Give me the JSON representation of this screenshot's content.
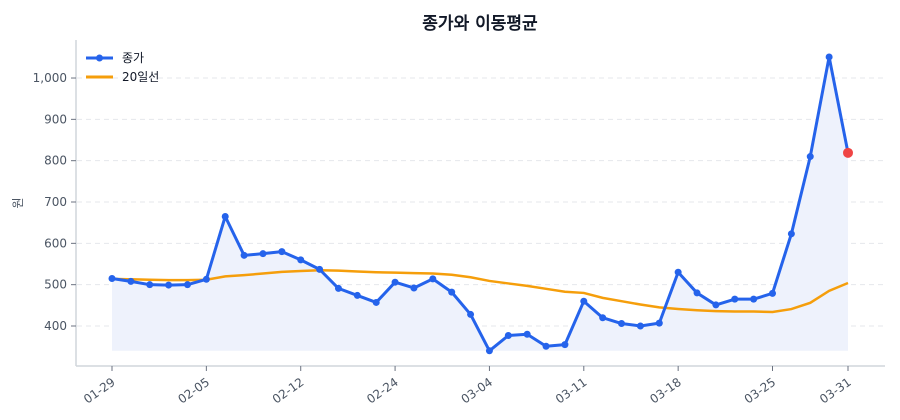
{
  "chart_data": {
    "type": "line",
    "title": "종가와 이동평균",
    "xlabel": "",
    "ylabel": "원",
    "ylim": [
      303,
      1092
    ],
    "yticks": [
      400,
      500,
      600,
      700,
      800,
      900,
      1000
    ],
    "ytick_labels": [
      "400",
      "500",
      "600",
      "700",
      "800",
      "900",
      "1,000"
    ],
    "xticks": [
      {
        "index": 0,
        "label": "01-29"
      },
      {
        "index": 5,
        "label": "02-05"
      },
      {
        "index": 10,
        "label": "02-12"
      },
      {
        "index": 15,
        "label": "02-24"
      },
      {
        "index": 20,
        "label": "03-04"
      },
      {
        "index": 25,
        "label": "03-11"
      },
      {
        "index": 30,
        "label": "03-18"
      },
      {
        "index": 35,
        "label": "03-25"
      },
      {
        "index": 39,
        "label": "03-31"
      }
    ],
    "grid": "horizontal dashed",
    "legend_placement": "top-left",
    "series": [
      {
        "name": "종가",
        "color": "#2563eb",
        "markers": true,
        "fill": "#eef2fc",
        "last_point_color": "#ef4444",
        "values": [
          515,
          508,
          500,
          499,
          500,
          513,
          665,
          571,
          575,
          580,
          560,
          537,
          491,
          474,
          457,
          506,
          492,
          514,
          482,
          428,
          340,
          377,
          380,
          351,
          355,
          460,
          420,
          406,
          400,
          407,
          530,
          480,
          451,
          465,
          465,
          479,
          623,
          810,
          1051,
          819
        ]
      },
      {
        "name": "20일선",
        "color": "#f59e0b",
        "markers": false,
        "values": [
          514,
          513,
          512,
          511,
          511,
          512,
          520,
          523,
          527,
          531,
          533,
          535,
          534,
          532,
          530,
          529,
          528,
          527,
          524,
          518,
          509,
          503,
          497,
          490,
          483,
          480,
          468,
          460,
          452,
          445,
          441,
          438,
          436,
          435,
          435,
          434,
          441,
          456,
          485,
          504
        ]
      }
    ]
  }
}
